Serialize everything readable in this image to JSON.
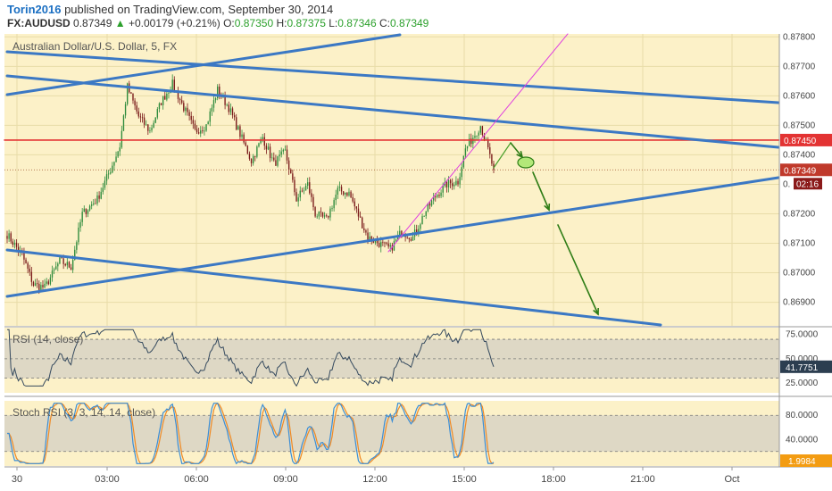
{
  "header": {
    "author": "Torin2016",
    "published_text": "published on TradingView.com, September 30, 2014",
    "symbol": "FX:AUDUSD",
    "last": "0.87349",
    "change": "+0.00179 (+0.21%)",
    "o_label": "O:",
    "o": "0.87350",
    "h_label": "H:",
    "h": "0.87375",
    "l_label": "L:",
    "l": "0.87346",
    "c_label": "C:",
    "c": "0.87349"
  },
  "colors": {
    "bg": "#fcf1c8",
    "up": "#2e8b3c",
    "down": "#7a1a1a",
    "trend": "#3b78c4",
    "resistance": "#e33333",
    "magenta": "#e040e0",
    "projection": "#2f7d16",
    "rsi": "#34495e",
    "stoch_k": "#3b8ed6",
    "stoch_d": "#f08a24"
  },
  "chart_data": [
    {
      "type": "candlestick",
      "title": "Australian Dollar/U.S. Dollar, 5, FX",
      "x_ticks": [
        "30",
        "03:00",
        "06:00",
        "09:00",
        "12:00",
        "15:00",
        "18:00",
        "21:00",
        "Oct"
      ],
      "y_ticks": [
        "0.87800",
        "0.87700",
        "0.87600",
        "0.87500",
        "0.87400",
        "0.87349",
        "0.87300",
        "0.87200",
        "0.87100",
        "0.87000",
        "0.86900"
      ],
      "ylim": [
        0.8682,
        0.8781
      ],
      "y_labels_left": [
        "0.87800",
        "0.87700",
        "0.87600",
        "0.87500",
        "0.87400"
      ],
      "y_label_partial": "0.",
      "y_labels_lower": [
        "0.87200",
        "0.87100",
        "0.87000",
        "0.86900"
      ],
      "resistance_label": "0.87450",
      "last_price_label": "0.87349",
      "countdown_label": "02:16",
      "resistance_level": 0.8745,
      "last_price": 0.87349
    },
    {
      "type": "line",
      "title": "RSI (14, close)",
      "ylim": [
        15,
        82
      ],
      "y_ticks": [
        75,
        50,
        25
      ],
      "y_tick_labels": [
        "75.0000",
        "50.0000",
        "25.0000"
      ],
      "overbought": 70,
      "oversold": 30,
      "last_value_label": "41.7751",
      "last_value": 41.7751
    },
    {
      "type": "line",
      "title": "Stoch RSI (3, 3, 14, 14, close)",
      "ylim": [
        -4,
        104
      ],
      "y_ticks": [
        80,
        40
      ],
      "y_tick_labels": [
        "80.0000",
        "40.0000"
      ],
      "upper_band": 80,
      "lower_band": 20,
      "last_value_label": "1.9984",
      "last_value": 1.9984
    }
  ]
}
